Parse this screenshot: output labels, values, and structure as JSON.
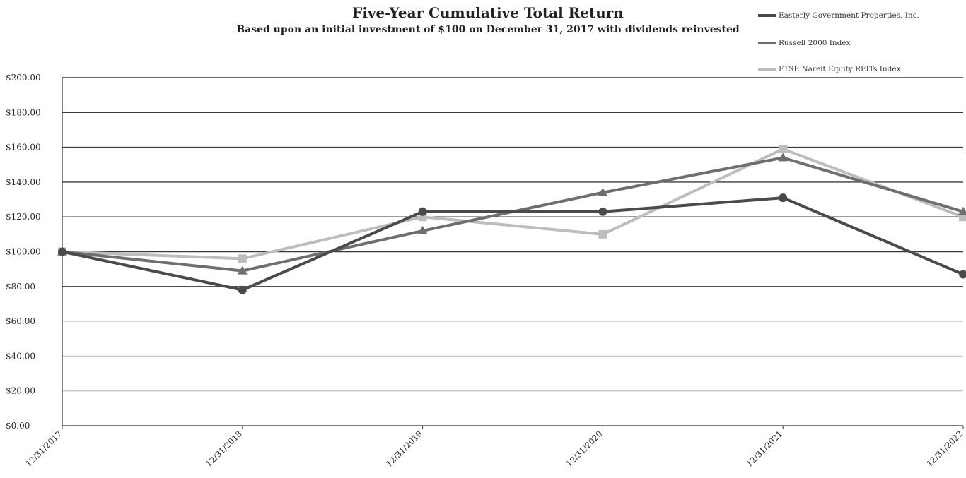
{
  "chart_data": {
    "type": "line",
    "title": "Five-Year Cumulative Total Return",
    "subtitle": "Based upon an initial investment of $100 on December 31, 2017 with dividends reinvested",
    "categories": [
      "12/31/2017",
      "12/31/2018",
      "12/31/2019",
      "12/31/2020",
      "12/31/2021",
      "12/31/2022"
    ],
    "series": [
      {
        "name": "Easterly Government Properties, Inc.",
        "values": [
          100,
          78,
          123,
          123,
          131,
          87
        ],
        "color": "#4a4a4a",
        "marker": "circle"
      },
      {
        "name": "Russell 2000 Index",
        "values": [
          100,
          89,
          112,
          134,
          154,
          123
        ],
        "color": "#6e6e6e",
        "marker": "triangle"
      },
      {
        "name": "FTSE Nareit Equity REITs Index",
        "values": [
          100,
          96,
          120,
          110,
          159,
          120
        ],
        "color": "#bdbdbd",
        "marker": "square"
      }
    ],
    "ylim": [
      0,
      200
    ],
    "yticks": [
      "$0.00",
      "$20.00",
      "$40.00",
      "$60.00",
      "$80.00",
      "$100.00",
      "$120.00",
      "$140.00",
      "$160.00",
      "$180.00",
      "$200.00"
    ],
    "grid": true,
    "legend": "top-right"
  }
}
